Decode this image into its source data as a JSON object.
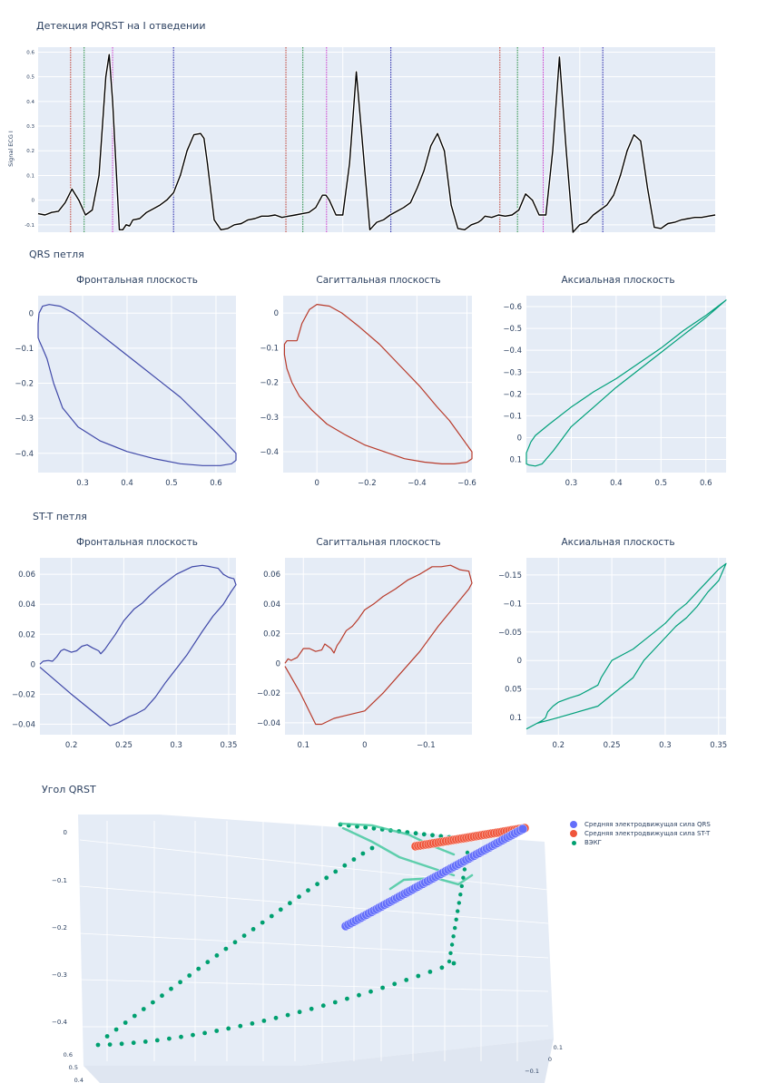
{
  "colors": {
    "plot_bg": "#e5ecf6",
    "grid": "#ffffff",
    "tick_text": "#2a3f5f",
    "ecg_line": "#000000",
    "p_marker": "#c0392b",
    "q_marker": "#1e8a3a",
    "s_marker": "#cc33cc",
    "t_marker": "#1a1aa6",
    "frontal": "#3f48a8",
    "sagittal": "#b83a2a",
    "axial": "#00a07a",
    "qrs_emf": "#636efa",
    "stt_emf": "#ef553b",
    "vecg": "#00a070"
  },
  "sections": {
    "ecg_title": "Детекция PQRST на I отведении",
    "qrs_title": "QRS петля",
    "stt_title": "ST-T петля",
    "angle_title": "Угол QRST"
  },
  "chart_data": [
    {
      "id": "ecg",
      "type": "line",
      "title": "Детекция PQRST на I отведении",
      "xlabel": "",
      "ylabel": "Signal ECG I",
      "ylim": [
        -0.13,
        0.62
      ],
      "xlim": [
        0,
        1
      ],
      "yticks": [
        -0.1,
        0,
        0.1,
        0.2,
        0.3,
        0.4,
        0.5,
        0.6
      ],
      "ytick_labels": [
        "-0.1",
        "0",
        "0.1",
        "0.2",
        "0.3",
        "0.4",
        "0.5",
        "0.6"
      ],
      "grid": true,
      "series": [
        {
          "name": "ECG I",
          "x": [
            0,
            0.01,
            0.02,
            0.03,
            0.04,
            0.05,
            0.06,
            0.07,
            0.08,
            0.09,
            0.1,
            0.105,
            0.11,
            0.12,
            0.125,
            0.13,
            0.135,
            0.14,
            0.15,
            0.16,
            0.17,
            0.18,
            0.19,
            0.2,
            0.21,
            0.22,
            0.23,
            0.24,
            0.245,
            0.25,
            0.26,
            0.27,
            0.28,
            0.29,
            0.3,
            0.31,
            0.32,
            0.33,
            0.34,
            0.35,
            0.36,
            0.37,
            0.38,
            0.39,
            0.4,
            0.41,
            0.42,
            0.425,
            0.43,
            0.44,
            0.45,
            0.46,
            0.47,
            0.48,
            0.49,
            0.5,
            0.51,
            0.52,
            0.53,
            0.54,
            0.55,
            0.56,
            0.57,
            0.58,
            0.59,
            0.6,
            0.61,
            0.62,
            0.63,
            0.64,
            0.65,
            0.655,
            0.66,
            0.67,
            0.68,
            0.69,
            0.7,
            0.71,
            0.72,
            0.73,
            0.74,
            0.75,
            0.76,
            0.77,
            0.78,
            0.79,
            0.8,
            0.81,
            0.82,
            0.83,
            0.84,
            0.85,
            0.86,
            0.87,
            0.88,
            0.89,
            0.9,
            0.91,
            0.92,
            0.93,
            0.94,
            0.95,
            0.96,
            0.97,
            0.98,
            0.99,
            1.0
          ],
          "y": [
            -0.055,
            -0.06,
            -0.05,
            -0.045,
            -0.01,
            0.045,
            0.0,
            -0.06,
            -0.04,
            0.1,
            0.5,
            0.59,
            0.4,
            -0.12,
            -0.12,
            -0.1,
            -0.105,
            -0.08,
            -0.075,
            -0.05,
            -0.035,
            -0.02,
            0.0,
            0.03,
            0.1,
            0.2,
            0.265,
            0.27,
            0.25,
            0.15,
            -0.08,
            -0.12,
            -0.115,
            -0.1,
            -0.095,
            -0.08,
            -0.075,
            -0.065,
            -0.065,
            -0.06,
            -0.07,
            -0.065,
            -0.06,
            -0.055,
            -0.05,
            -0.03,
            0.02,
            0.02,
            0.0,
            -0.06,
            -0.06,
            0.15,
            0.52,
            0.2,
            -0.12,
            -0.09,
            -0.08,
            -0.06,
            -0.045,
            -0.03,
            -0.01,
            0.05,
            0.12,
            0.22,
            0.27,
            0.2,
            -0.02,
            -0.115,
            -0.12,
            -0.1,
            -0.09,
            -0.08,
            -0.065,
            -0.07,
            -0.06,
            -0.065,
            -0.06,
            -0.04,
            0.025,
            0.0,
            -0.06,
            -0.06,
            0.2,
            0.58,
            0.2,
            -0.13,
            -0.1,
            -0.09,
            -0.06,
            -0.04,
            -0.02,
            0.02,
            0.1,
            0.2,
            0.265,
            0.24,
            0.05,
            -0.11,
            -0.115,
            -0.095,
            -0.09,
            -0.08,
            -0.075,
            -0.07,
            -0.07,
            -0.065,
            -0.06
          ]
        }
      ],
      "markers": [
        {
          "type": "P",
          "x": [
            0.048,
            0.366,
            0.682
          ],
          "color_key": "p_marker"
        },
        {
          "type": "Q",
          "x": [
            0.068,
            0.391,
            0.708
          ],
          "color_key": "q_marker"
        },
        {
          "type": "S",
          "x": [
            0.11,
            0.426,
            0.746
          ],
          "color_key": "s_marker"
        },
        {
          "type": "T",
          "x": [
            0.2,
            0.521,
            0.834
          ],
          "color_key": "t_marker"
        }
      ]
    },
    {
      "id": "qrs-frontal",
      "type": "line",
      "title": "Фронтальная плоскость",
      "color_key": "frontal",
      "xlim": [
        0.2,
        0.645
      ],
      "ylim": [
        -0.455,
        0.05
      ],
      "xticks": [
        0.3,
        0.4,
        0.5,
        0.6
      ],
      "xtick_labels": [
        "0.3",
        "0.4",
        "0.5",
        "0.6"
      ],
      "yticks": [
        0,
        -0.1,
        -0.2,
        -0.3,
        -0.4
      ],
      "ytick_labels": [
        "0",
        "−0.1",
        "−0.2",
        "−0.3",
        "−0.4"
      ],
      "x": [
        0.202,
        0.21,
        0.225,
        0.25,
        0.28,
        0.32,
        0.37,
        0.42,
        0.47,
        0.52,
        0.56,
        0.6,
        0.63,
        0.645,
        0.645,
        0.635,
        0.61,
        0.57,
        0.52,
        0.46,
        0.4,
        0.34,
        0.29,
        0.255,
        0.235,
        0.22,
        0.21,
        0.203,
        0.2,
        0.2,
        0.202
      ],
      "y": [
        0.0,
        0.02,
        0.025,
        0.02,
        0.0,
        -0.04,
        -0.09,
        -0.14,
        -0.19,
        -0.24,
        -0.29,
        -0.34,
        -0.38,
        -0.4,
        -0.42,
        -0.43,
        -0.435,
        -0.435,
        -0.43,
        -0.415,
        -0.395,
        -0.365,
        -0.325,
        -0.27,
        -0.2,
        -0.13,
        -0.1,
        -0.08,
        -0.07,
        -0.03,
        0.0
      ]
    },
    {
      "id": "qrs-sagittal",
      "type": "line",
      "title": "Сагиттальная плоскость",
      "color_key": "sagittal",
      "xlim": [
        0.135,
        -0.62
      ],
      "ylim": [
        -0.46,
        0.05
      ],
      "xticks": [
        0,
        -0.2,
        -0.4,
        -0.6
      ],
      "xtick_labels": [
        "0",
        "−0.2",
        "−0.4",
        "−0.6"
      ],
      "yticks": [
        0,
        -0.1,
        -0.2,
        -0.3,
        -0.4
      ],
      "ytick_labels": [
        "0",
        "−0.1",
        "−0.2",
        "−0.3",
        "−0.4"
      ],
      "x": [
        0.08,
        0.06,
        0.03,
        0.0,
        -0.05,
        -0.1,
        -0.17,
        -0.25,
        -0.33,
        -0.41,
        -0.48,
        -0.53,
        -0.56,
        -0.62,
        -0.62,
        -0.6,
        -0.55,
        -0.5,
        -0.43,
        -0.35,
        -0.27,
        -0.19,
        -0.11,
        -0.04,
        0.02,
        0.07,
        0.1,
        0.12,
        0.13,
        0.13,
        0.12,
        0.08,
        0.08
      ],
      "y": [
        -0.08,
        -0.03,
        0.01,
        0.025,
        0.02,
        0.0,
        -0.04,
        -0.09,
        -0.15,
        -0.21,
        -0.27,
        -0.31,
        -0.34,
        -0.4,
        -0.42,
        -0.43,
        -0.435,
        -0.435,
        -0.43,
        -0.42,
        -0.4,
        -0.38,
        -0.35,
        -0.32,
        -0.28,
        -0.24,
        -0.2,
        -0.16,
        -0.12,
        -0.09,
        -0.08,
        -0.08,
        -0.08
      ]
    },
    {
      "id": "qrs-axial",
      "type": "line",
      "title": "Аксиальная плоскость",
      "color_key": "axial",
      "xlim": [
        0.2,
        0.645
      ],
      "ylim": [
        0.16,
        -0.65
      ],
      "xticks": [
        0.3,
        0.4,
        0.5,
        0.6
      ],
      "xtick_labels": [
        "0.3",
        "0.4",
        "0.5",
        "0.6"
      ],
      "yticks": [
        -0.6,
        -0.5,
        -0.4,
        -0.3,
        -0.2,
        -0.1,
        0,
        0.1
      ],
      "ytick_labels": [
        "−0.6",
        "−0.5",
        "−0.4",
        "−0.3",
        "−0.2",
        "−0.1",
        "0",
        "0.1"
      ],
      "x": [
        0.2,
        0.21,
        0.22,
        0.25,
        0.3,
        0.35,
        0.4,
        0.45,
        0.5,
        0.55,
        0.6,
        0.645,
        0.6,
        0.55,
        0.5,
        0.45,
        0.4,
        0.35,
        0.3,
        0.26,
        0.235,
        0.22,
        0.205,
        0.2,
        0.2
      ],
      "y": [
        0.07,
        0.02,
        -0.01,
        -0.06,
        -0.14,
        -0.21,
        -0.27,
        -0.34,
        -0.41,
        -0.49,
        -0.56,
        -0.63,
        -0.55,
        -0.47,
        -0.39,
        -0.31,
        -0.23,
        -0.14,
        -0.05,
        0.06,
        0.12,
        0.13,
        0.125,
        0.12,
        0.07
      ]
    },
    {
      "id": "stt-frontal",
      "type": "line",
      "title": "Фронтальная плоскость",
      "color_key": "frontal",
      "xlim": [
        0.17,
        0.357
      ],
      "ylim": [
        -0.047,
        0.071
      ],
      "xticks": [
        0.2,
        0.25,
        0.3,
        0.35
      ],
      "xtick_labels": [
        "0.2",
        "0.25",
        "0.3",
        "0.35"
      ],
      "yticks": [
        0.06,
        0.04,
        0.02,
        0,
        -0.02,
        -0.04
      ],
      "ytick_labels": [
        "0.06",
        "0.04",
        "0.02",
        "0",
        "−0.02",
        "−0.04"
      ],
      "x": [
        0.17,
        0.173,
        0.178,
        0.182,
        0.186,
        0.19,
        0.193,
        0.2,
        0.205,
        0.21,
        0.215,
        0.22,
        0.226,
        0.228,
        0.232,
        0.236,
        0.242,
        0.25,
        0.26,
        0.268,
        0.275,
        0.285,
        0.3,
        0.315,
        0.325,
        0.333,
        0.34,
        0.345,
        0.35,
        0.355,
        0.357,
        0.352,
        0.345,
        0.335,
        0.325,
        0.31,
        0.3,
        0.29,
        0.28,
        0.27,
        0.262,
        0.255,
        0.245,
        0.237,
        0.2,
        0.17
      ],
      "y": [
        0.0,
        0.002,
        0.0025,
        0.002,
        0.005,
        0.009,
        0.01,
        0.008,
        0.009,
        0.012,
        0.013,
        0.011,
        0.009,
        0.007,
        0.01,
        0.014,
        0.02,
        0.029,
        0.037,
        0.041,
        0.046,
        0.052,
        0.06,
        0.065,
        0.066,
        0.065,
        0.064,
        0.06,
        0.058,
        0.057,
        0.053,
        0.048,
        0.04,
        0.032,
        0.022,
        0.006,
        -0.003,
        -0.012,
        -0.022,
        -0.03,
        -0.033,
        -0.035,
        -0.039,
        -0.041,
        -0.02,
        -0.002
      ]
    },
    {
      "id": "stt-sagittal",
      "type": "line",
      "title": "Сагиттальная плоскость",
      "color_key": "sagittal",
      "xlim": [
        0.13,
        -0.175
      ],
      "ylim": [
        -0.048,
        0.071
      ],
      "xticks": [
        0.1,
        0,
        -0.1
      ],
      "xtick_labels": [
        "0.1",
        "0",
        "−0.1"
      ],
      "yticks": [
        0.06,
        0.04,
        0.02,
        0,
        -0.02,
        -0.04
      ],
      "ytick_labels": [
        "0.06",
        "0.04",
        "0.02",
        "0",
        "−0.02",
        "−0.04"
      ],
      "x": [
        0.13,
        0.125,
        0.12,
        0.115,
        0.11,
        0.1,
        0.09,
        0.08,
        0.07,
        0.065,
        0.055,
        0.05,
        0.045,
        0.04,
        0.03,
        0.02,
        0.01,
        0.0,
        -0.015,
        -0.03,
        -0.05,
        -0.07,
        -0.09,
        -0.11,
        -0.125,
        -0.14,
        -0.155,
        -0.17,
        -0.175,
        -0.17,
        -0.15,
        -0.12,
        -0.09,
        -0.06,
        -0.03,
        0.0,
        0.03,
        0.05,
        0.07,
        0.08,
        0.105,
        0.13
      ],
      "y": [
        0.0,
        0.003,
        0.002,
        0.003,
        0.004,
        0.01,
        0.01,
        0.008,
        0.009,
        0.013,
        0.01,
        0.007,
        0.012,
        0.015,
        0.022,
        0.025,
        0.03,
        0.036,
        0.04,
        0.045,
        0.05,
        0.056,
        0.06,
        0.065,
        0.065,
        0.066,
        0.063,
        0.062,
        0.054,
        0.05,
        0.04,
        0.025,
        0.008,
        -0.006,
        -0.02,
        -0.032,
        -0.035,
        -0.037,
        -0.041,
        -0.041,
        -0.02,
        -0.002
      ]
    },
    {
      "id": "stt-axial",
      "type": "line",
      "title": "Аксиальная плоскость",
      "color_key": "axial",
      "xlim": [
        0.17,
        0.357
      ],
      "ylim": [
        0.13,
        -0.18
      ],
      "xticks": [
        0.2,
        0.25,
        0.3,
        0.35
      ],
      "xtick_labels": [
        "0.2",
        "0.25",
        "0.3",
        "0.35"
      ],
      "yticks": [
        -0.15,
        -0.1,
        -0.05,
        0,
        0.05,
        0.1
      ],
      "ytick_labels": [
        "−0.15",
        "−0.1",
        "−0.05",
        "0",
        "0.05",
        "0.1"
      ],
      "x": [
        0.17,
        0.18,
        0.185,
        0.188,
        0.19,
        0.195,
        0.2,
        0.21,
        0.22,
        0.23,
        0.237,
        0.24,
        0.245,
        0.25,
        0.26,
        0.27,
        0.28,
        0.29,
        0.3,
        0.31,
        0.32,
        0.33,
        0.34,
        0.35,
        0.357,
        0.35,
        0.34,
        0.33,
        0.32,
        0.31,
        0.3,
        0.29,
        0.28,
        0.27,
        0.26,
        0.25,
        0.237,
        0.2,
        0.18,
        0.17
      ],
      "y": [
        0.12,
        0.11,
        0.105,
        0.1,
        0.09,
        0.08,
        0.073,
        0.066,
        0.06,
        0.05,
        0.043,
        0.03,
        0.015,
        0.0,
        -0.01,
        -0.02,
        -0.035,
        -0.05,
        -0.065,
        -0.085,
        -0.1,
        -0.12,
        -0.14,
        -0.16,
        -0.17,
        -0.14,
        -0.12,
        -0.095,
        -0.075,
        -0.06,
        -0.04,
        -0.02,
        0.0,
        0.03,
        0.045,
        0.06,
        0.08,
        0.1,
        0.11,
        0.12
      ]
    },
    {
      "id": "qrst-angle",
      "type": "scatter",
      "title": "Угол QRST",
      "is_3d": true,
      "z_ticks": [
        "0",
        "−0.1",
        "−0.2",
        "−0.3",
        "−0.4"
      ],
      "x_ticks": [
        "0.6",
        "0.5",
        "0.4"
      ],
      "y_ticks": [
        "0.1",
        "0",
        "−0.1"
      ],
      "legend_position": "top-right",
      "series": [
        {
          "name": "Средняя электродвижущая сила QRS",
          "color_key": "qrs_emf",
          "symbol": "large-circle"
        },
        {
          "name": "Средняя электродвижущая сила ST-T",
          "color_key": "stt_emf",
          "symbol": "large-circle"
        },
        {
          "name": "ВЭКГ",
          "color_key": "vecg",
          "symbol": "small-circle"
        }
      ]
    }
  ]
}
